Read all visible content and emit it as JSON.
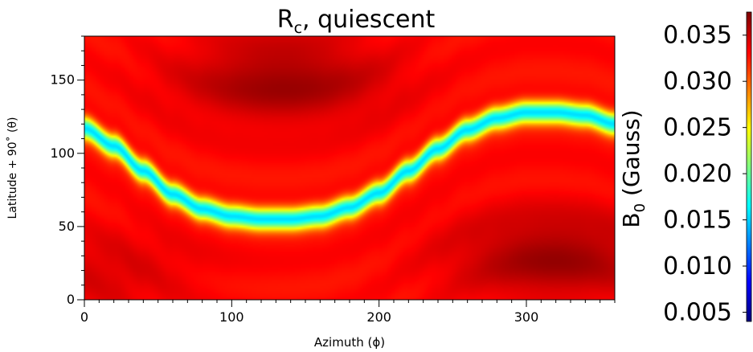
{
  "chart_data": {
    "type": "heatmap",
    "title_main": "R",
    "title_sub": "c",
    "title_rest": ", quiescent",
    "xlabel": "Azimuth (ϕ)",
    "ylabel": "Latitude + 90˚ (θ)",
    "colorbar_label_main": "B",
    "colorbar_label_sub": "0",
    "colorbar_label_rest": " (Gauss)",
    "xlim": [
      0,
      360
    ],
    "ylim": [
      0,
      180
    ],
    "x_ticks": [
      "0",
      "100",
      "200",
      "300"
    ],
    "x_tick_values": [
      0,
      100,
      200,
      300
    ],
    "y_ticks": [
      "0",
      "50",
      "100",
      "150"
    ],
    "y_tick_values": [
      0,
      50,
      100,
      150
    ],
    "colorbar_range": [
      0.004,
      0.0375
    ],
    "colorbar_ticks": [
      "0.005",
      "0.010",
      "0.015",
      "0.020",
      "0.025",
      "0.030",
      "0.035"
    ],
    "colorbar_tick_values": [
      0.005,
      0.01,
      0.015,
      0.02,
      0.025,
      0.03,
      0.035
    ],
    "colormap": "jet",
    "neutral_line": {
      "description": "current sheet",
      "points": [
        [
          0,
          117
        ],
        [
          20,
          105
        ],
        [
          40,
          88
        ],
        [
          60,
          72
        ],
        [
          80,
          62
        ],
        [
          100,
          57
        ],
        [
          120,
          55
        ],
        [
          140,
          55
        ],
        [
          160,
          57
        ],
        [
          180,
          63
        ],
        [
          200,
          73
        ],
        [
          220,
          88
        ],
        [
          240,
          103
        ],
        [
          260,
          116
        ],
        [
          280,
          124
        ],
        [
          300,
          128
        ],
        [
          320,
          128
        ],
        [
          340,
          126
        ],
        [
          360,
          120
        ]
      ]
    },
    "background_value": 0.033,
    "maxima": [
      {
        "x": 135,
        "y": 150,
        "value": 0.0365
      },
      {
        "x": 320,
        "y": 30,
        "value": 0.0365
      },
      {
        "x": 10,
        "y": 20,
        "value": 0.0345
      }
    ]
  }
}
